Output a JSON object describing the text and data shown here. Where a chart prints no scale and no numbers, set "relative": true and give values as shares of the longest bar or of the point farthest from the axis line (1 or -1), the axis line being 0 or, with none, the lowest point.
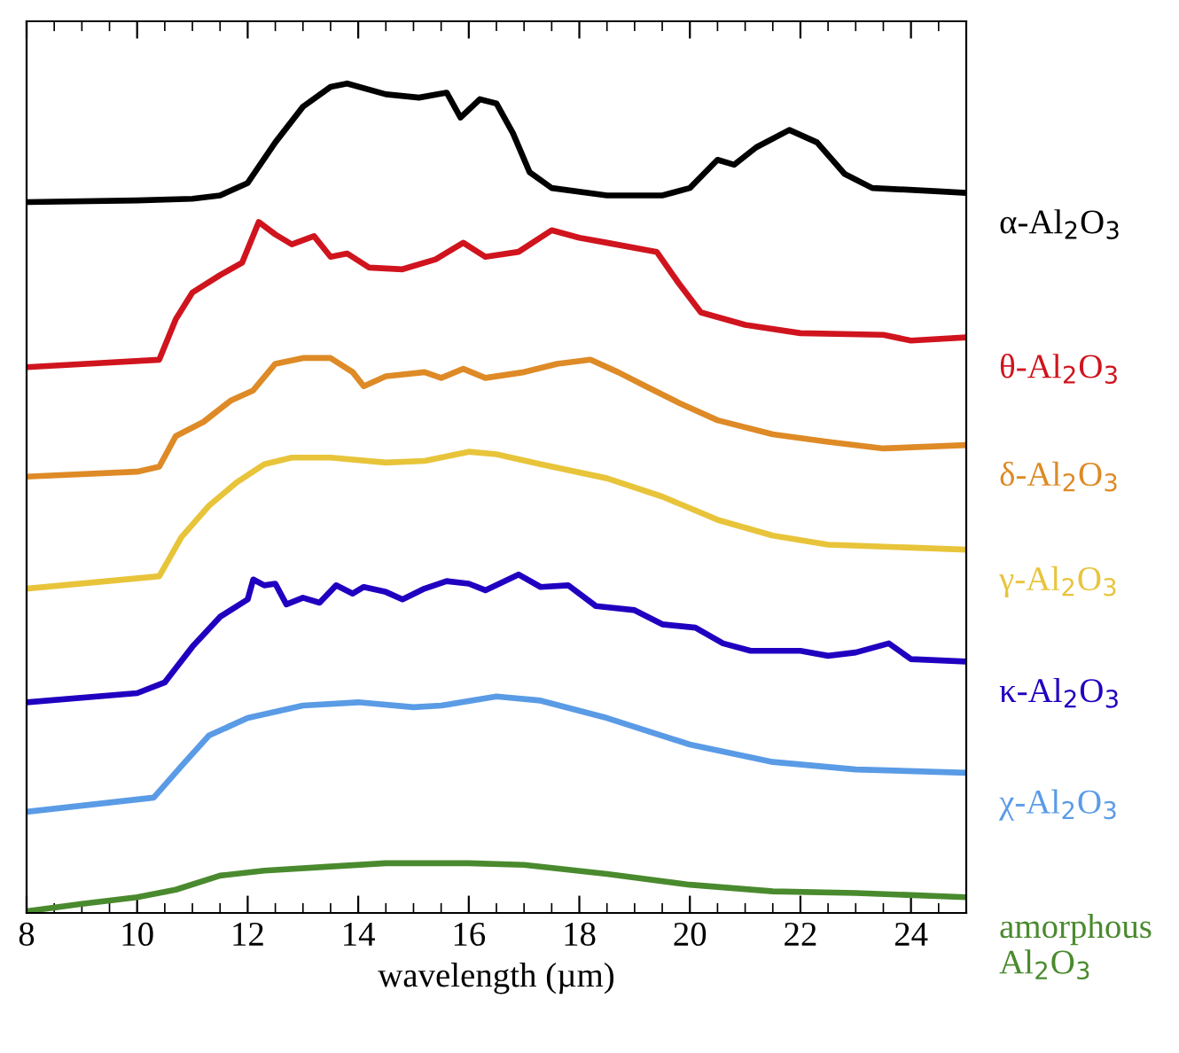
{
  "chart_data": {
    "type": "line",
    "relative": true,
    "xlabel": "wavelength (µm)",
    "xlim": [
      8,
      25
    ],
    "xticks": [
      8,
      10,
      12,
      14,
      16,
      18,
      20,
      22,
      24
    ],
    "grid": false,
    "legend": false,
    "marker": "none",
    "line_style": "solid",
    "series": [
      {
        "name": "α-Al$_{2}$O$_{3}$",
        "color": "#000000",
        "x": [
          8,
          10,
          11,
          11.5,
          12,
          12.5,
          13,
          13.5,
          13.8,
          14.5,
          15.1,
          15.6,
          15.85,
          16.2,
          16.5,
          16.8,
          17.1,
          17.5,
          18.5,
          19.5,
          20,
          20.5,
          20.8,
          21.2,
          21.8,
          22.3,
          22.8,
          23.3,
          24.5,
          25
        ],
        "values": [
          0.857,
          0.859,
          0.861,
          0.865,
          0.88,
          0.929,
          0.972,
          0.996,
          1.0,
          0.987,
          0.983,
          0.989,
          0.959,
          0.981,
          0.976,
          0.94,
          0.893,
          0.874,
          0.865,
          0.865,
          0.874,
          0.908,
          0.902,
          0.923,
          0.944,
          0.929,
          0.891,
          0.874,
          0.87,
          0.868
        ]
      },
      {
        "name": "θ-Al$_{2}$O$_{3}$",
        "color": "#d0141e",
        "x": [
          8,
          10.4,
          10.7,
          11,
          11.5,
          11.9,
          12.2,
          12.5,
          12.8,
          13.2,
          13.5,
          13.8,
          14.2,
          14.8,
          15.4,
          15.9,
          16.3,
          16.9,
          17.5,
          18,
          18.5,
          19.4,
          19.8,
          20.2,
          21,
          22,
          23.5,
          24,
          25
        ],
        "values": [
          0.658,
          0.667,
          0.716,
          0.748,
          0.769,
          0.784,
          0.833,
          0.818,
          0.806,
          0.816,
          0.791,
          0.795,
          0.778,
          0.776,
          0.788,
          0.808,
          0.791,
          0.797,
          0.823,
          0.814,
          0.808,
          0.797,
          0.759,
          0.724,
          0.709,
          0.699,
          0.697,
          0.69,
          0.694
        ]
      },
      {
        "name": "δ-Al$_{2}$O$_{3}$",
        "color": "#de8a26",
        "x": [
          8,
          10,
          10.4,
          10.7,
          11.2,
          11.7,
          12.1,
          12.5,
          13,
          13.5,
          13.9,
          14.1,
          14.5,
          15.2,
          15.5,
          15.9,
          16.3,
          17,
          17.6,
          18.2,
          18.7,
          19.2,
          19.8,
          20.5,
          21.5,
          22.5,
          23.5,
          25
        ],
        "values": [
          0.526,
          0.532,
          0.538,
          0.575,
          0.592,
          0.618,
          0.63,
          0.662,
          0.669,
          0.669,
          0.652,
          0.635,
          0.647,
          0.652,
          0.645,
          0.656,
          0.645,
          0.652,
          0.662,
          0.667,
          0.652,
          0.635,
          0.615,
          0.594,
          0.577,
          0.568,
          0.56,
          0.564
        ]
      },
      {
        "name": "γ-Al$_{2}$O$_{3}$",
        "color": "#e8c43a",
        "x": [
          8,
          10.4,
          10.8,
          11.3,
          11.8,
          12.3,
          12.8,
          13.5,
          14.5,
          15.2,
          16,
          16.5,
          17.3,
          18.5,
          19.5,
          20.5,
          21.5,
          22.5,
          25
        ],
        "values": [
          0.391,
          0.406,
          0.453,
          0.491,
          0.519,
          0.541,
          0.549,
          0.549,
          0.543,
          0.545,
          0.556,
          0.553,
          0.541,
          0.524,
          0.502,
          0.474,
          0.455,
          0.444,
          0.438
        ]
      },
      {
        "name": "κ-Al$_{2}$O$_{3}$",
        "color": "#2000c0",
        "x": [
          8,
          10,
          10.5,
          11,
          11.5,
          12,
          12.1,
          12.3,
          12.5,
          12.7,
          13,
          13.3,
          13.6,
          13.9,
          14.1,
          14.5,
          14.8,
          15.2,
          15.6,
          16,
          16.3,
          16.9,
          17.3,
          17.8,
          18.3,
          19,
          19.5,
          20.1,
          20.6,
          21.1,
          22,
          22.5,
          23,
          23.6,
          24,
          25
        ],
        "values": [
          0.254,
          0.265,
          0.278,
          0.321,
          0.357,
          0.378,
          0.402,
          0.395,
          0.397,
          0.372,
          0.38,
          0.374,
          0.395,
          0.385,
          0.393,
          0.387,
          0.378,
          0.391,
          0.4,
          0.397,
          0.389,
          0.408,
          0.393,
          0.395,
          0.37,
          0.365,
          0.348,
          0.344,
          0.325,
          0.316,
          0.316,
          0.31,
          0.314,
          0.325,
          0.306,
          0.303
        ]
      },
      {
        "name": "χ-Al$_{2}$O$_{3}$",
        "color": "#5a9be6",
        "x": [
          8,
          10.3,
          10.8,
          11.3,
          12,
          13,
          14,
          15,
          15.5,
          16.5,
          17.3,
          18.5,
          20,
          21.5,
          23,
          25
        ],
        "values": [
          0.122,
          0.139,
          0.177,
          0.214,
          0.235,
          0.25,
          0.254,
          0.248,
          0.25,
          0.261,
          0.256,
          0.235,
          0.203,
          0.182,
          0.173,
          0.169
        ]
      },
      {
        "name": "amorphous\nAl$_{2}$O$_{3}$",
        "color": "#4a8a2e",
        "x": [
          8,
          9,
          10,
          10.7,
          11.5,
          12.3,
          13.5,
          14.5,
          16,
          17,
          18.5,
          20,
          21.5,
          23,
          25
        ],
        "values": [
          0.002,
          0.011,
          0.019,
          0.028,
          0.045,
          0.051,
          0.056,
          0.06,
          0.06,
          0.058,
          0.047,
          0.034,
          0.026,
          0.024,
          0.019
        ]
      }
    ]
  }
}
